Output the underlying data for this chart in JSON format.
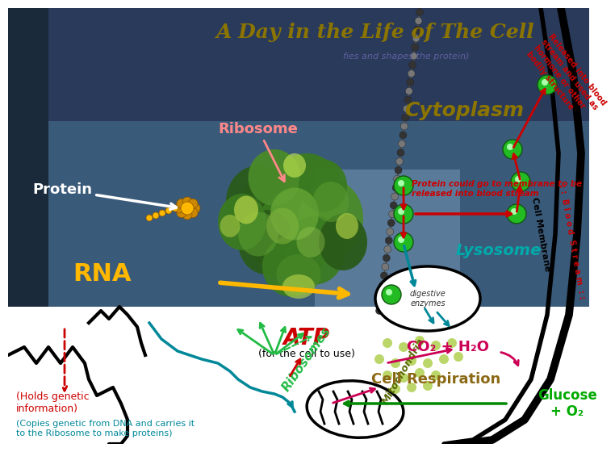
{
  "title": "A Day in the Life of The Cell",
  "title_color": "#8B7500",
  "title_fontsize": 18,
  "bg_color": "#ffffff",
  "labels": {
    "ribosome": "Ribosome",
    "ribosome_color": "#FF8888",
    "protein": "Protein",
    "rna": "RNA",
    "rna_color": "#FFB800",
    "cytoplasm": "Cytoplasm",
    "cytoplasm_color": "#8B7500",
    "lysosome": "Lysosome",
    "lysosome_color": "#00AAAA",
    "atp": "ATP",
    "atp_color": "#CC0000",
    "cell_respiration": "Cell Respiration",
    "cell_respiration_color": "#8B6914",
    "cell_membrane": "Cell Membrane",
    "blood_stream": ": : B l o o d  S t r e a m : :",
    "glucose": "Glucose\n+ O₂",
    "glucose_color": "#00AA00",
    "co2_h2o": "CO₂ + H₂O",
    "co2_color": "#CC0055",
    "holds_genetic": "(Holds genetic\ninformation)",
    "copies_genetic": "(Copies genetic from DNA and carries it\nto the Ribosome to make proteins)",
    "ribosomes_label": "Ribosomes",
    "protein_membrane": "Protein could go to membrane to be\nreleased into blood stream",
    "for_cell": "(for the cell to use)",
    "released_text": "Released into blood\nstream and used as\nhormone or other\nbodily structure",
    "digestive": "digestive\nenzymes",
    "golgi_text": "fies and shapes the protein)",
    "mitochondria": "Mitochondria"
  },
  "img_bg_dark": "#2a3a5a",
  "img_bg_mid": "#3a5a7a",
  "img_bg_light": "#4a6a8a"
}
